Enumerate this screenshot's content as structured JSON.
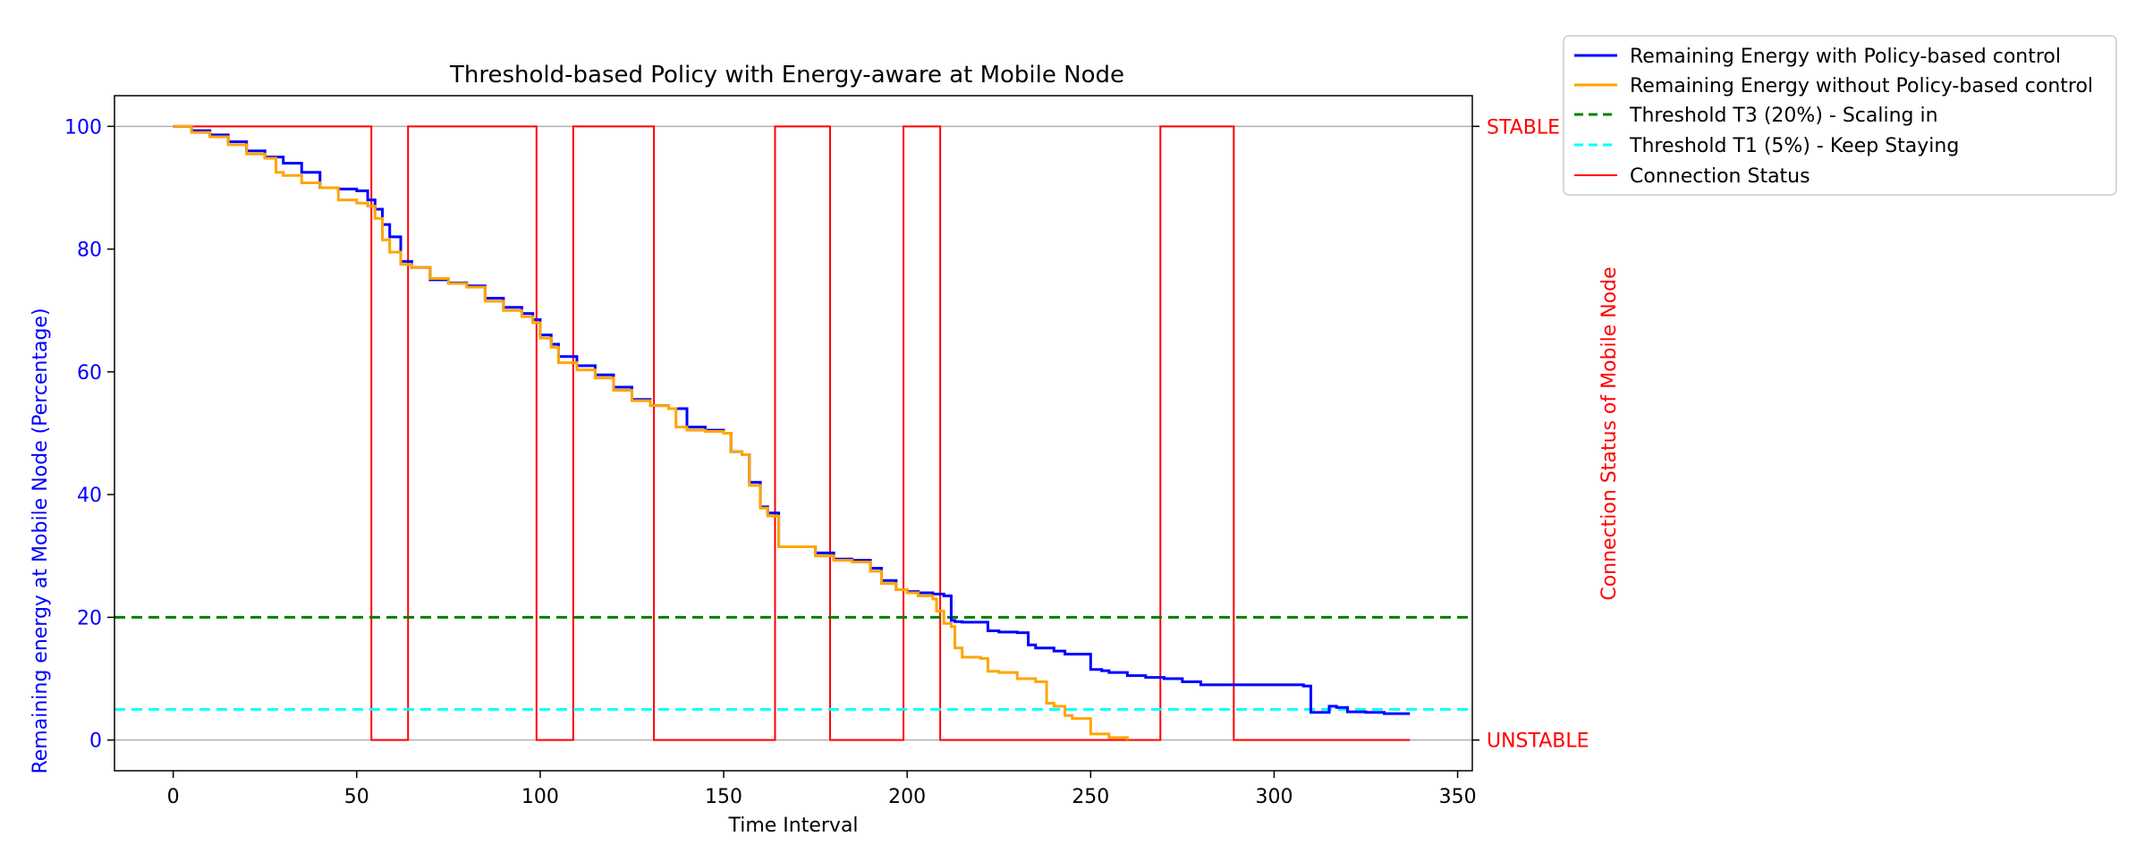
{
  "chart_data": {
    "type": "line",
    "title": "Threshold-based Policy with Energy-aware at Mobile Node",
    "xlabel": "Time Interval",
    "ylabel": "Remaining energy at Mobile Node (Percentage)",
    "ylabel_right": "Connection Status of Mobile Node",
    "xlim": [
      -16,
      354
    ],
    "ylim": [
      -5,
      105
    ],
    "x_ticks": [
      "0",
      "50",
      "100",
      "150",
      "200",
      "250",
      "300",
      "350"
    ],
    "y_ticks": [
      "0",
      "20",
      "40",
      "60",
      "80",
      "100"
    ],
    "right_ticks": [
      "STABLE",
      "UNSTABLE"
    ],
    "legend_position": "outside-top-right",
    "colors": {
      "policy": "#0000ff",
      "no_policy": "#ffa500",
      "t3": "#008000",
      "t1": "#00ffff",
      "status": "#ff0000",
      "left_axis_text": "#0000ff",
      "right_axis_text": "#ff0000"
    },
    "series": [
      {
        "name": "Remaining Energy with Policy-based control",
        "style": "solid",
        "x": [
          0,
          5,
          10,
          15,
          20,
          25,
          30,
          35,
          40,
          45,
          50,
          53,
          55,
          57,
          59,
          62,
          65,
          70,
          75,
          80,
          85,
          90,
          95,
          98,
          100,
          103,
          105,
          110,
          115,
          120,
          125,
          130,
          135,
          140,
          145,
          150,
          152,
          155,
          157,
          160,
          162,
          165,
          170,
          175,
          180,
          185,
          190,
          193,
          197,
          200,
          203,
          207,
          210,
          212,
          213,
          215,
          220,
          222,
          225,
          230,
          233,
          235,
          240,
          243,
          245,
          250,
          253,
          255,
          260,
          265,
          270,
          275,
          280,
          285,
          290,
          300,
          308,
          310,
          312,
          315,
          317,
          320,
          325,
          330,
          337
        ],
        "y": [
          100,
          99.3,
          98.6,
          97.5,
          96,
          95,
          94,
          92.5,
          90,
          89.8,
          89.5,
          88,
          86.5,
          84,
          82,
          78,
          77,
          75,
          74.5,
          74,
          72,
          70.5,
          69.5,
          68.5,
          66,
          64.5,
          62.5,
          61,
          59.5,
          57.5,
          55.5,
          54.5,
          54,
          51,
          50.5,
          50,
          47,
          46.5,
          42,
          38,
          37,
          31.5,
          31.5,
          30.5,
          29.5,
          29.3,
          28,
          26,
          24.5,
          24.2,
          24,
          23.8,
          23.5,
          19.5,
          19.3,
          19.2,
          19.2,
          17.8,
          17.6,
          17.5,
          15.5,
          15,
          14.5,
          14,
          14,
          11.5,
          11.3,
          11,
          10.5,
          10.2,
          10,
          9.5,
          9,
          9,
          9,
          9,
          8.8,
          4.5,
          4.5,
          5.5,
          5.3,
          4.6,
          4.5,
          4.3,
          4.3
        ]
      },
      {
        "name": "Remaining Energy without Policy-based control",
        "style": "solid",
        "x": [
          0,
          5,
          10,
          15,
          20,
          25,
          28,
          30,
          35,
          40,
          45,
          50,
          53,
          55,
          57,
          59,
          62,
          65,
          70,
          75,
          80,
          85,
          90,
          95,
          98,
          100,
          103,
          105,
          110,
          115,
          120,
          125,
          130,
          135,
          137,
          140,
          145,
          150,
          152,
          155,
          157,
          160,
          162,
          165,
          170,
          175,
          180,
          185,
          190,
          193,
          197,
          200,
          203,
          207,
          208,
          210,
          212,
          213,
          215,
          220,
          222,
          225,
          230,
          235,
          238,
          240,
          243,
          245,
          248,
          250,
          255,
          260
        ],
        "y": [
          100,
          99,
          98.3,
          97,
          95.5,
          94.8,
          92.5,
          92,
          90.8,
          90,
          88,
          87.5,
          87,
          85,
          81.5,
          79.5,
          77.5,
          77,
          75.2,
          74.4,
          73.8,
          71.5,
          70,
          69,
          68,
          65.5,
          64,
          61.5,
          60.3,
          59,
          57,
          55.3,
          54.5,
          54,
          51,
          50.5,
          50.3,
          50,
          47,
          46.5,
          41.5,
          37.8,
          36.5,
          31.5,
          31.5,
          30,
          29.3,
          29,
          27.5,
          25.5,
          24.5,
          24,
          23.5,
          23,
          21,
          19,
          18.5,
          15,
          13.5,
          13.3,
          11.2,
          11,
          10,
          9.5,
          6,
          5.5,
          4,
          3.5,
          3.5,
          1,
          0.4,
          0
        ]
      },
      {
        "name": "Threshold T3 (20%) - Scaling in",
        "style": "dashed",
        "x": [
          -16,
          354
        ],
        "y": [
          20,
          20
        ]
      },
      {
        "name": "Threshold T1 (5%) - Keep Staying",
        "style": "dashed",
        "x": [
          -16,
          354
        ],
        "y": [
          5,
          5
        ]
      },
      {
        "name": "Connection Status",
        "style": "step",
        "x": [
          0,
          54,
          64,
          99,
          109,
          131,
          164,
          179,
          199,
          209,
          269,
          289,
          337
        ],
        "y": [
          100,
          0,
          100,
          0,
          100,
          0,
          100,
          0,
          100,
          0,
          100,
          0,
          0
        ]
      }
    ]
  }
}
